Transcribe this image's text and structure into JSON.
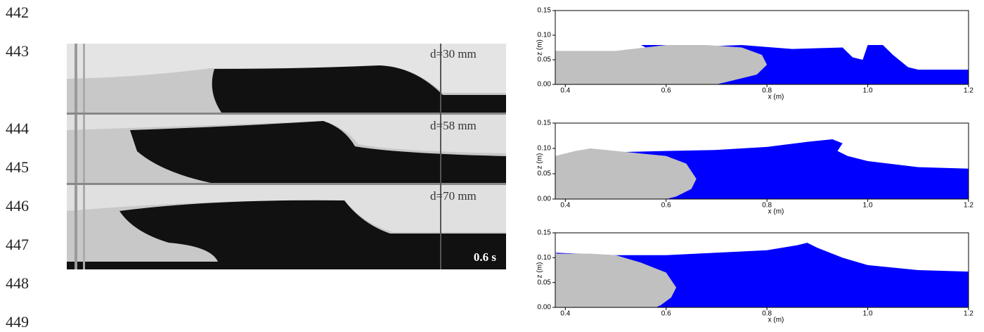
{
  "line_numbers": [
    442,
    443,
    444,
    445,
    446,
    447,
    448,
    449
  ],
  "photo": {
    "labels": [
      "d=30 mm",
      "d=58 mm",
      "d=70 mm"
    ],
    "time": "0.6 s"
  },
  "chart_data": [
    {
      "type": "area",
      "xlabel": "x (m)",
      "ylabel": "z (m)",
      "xlim": [
        0.38,
        1.2
      ],
      "ylim": [
        0,
        0.15
      ],
      "xticks": [
        0.4,
        0.6,
        0.8,
        {
          "value": 1.0,
          "label": "1.0"
        },
        1.2
      ],
      "yticks": [
        {
          "value": 0,
          "label": "0.00"
        },
        {
          "value": 0.05,
          "label": "0.05"
        },
        {
          "value": 0.1,
          "label": "0.10"
        },
        {
          "value": 0.15,
          "label": "0.15"
        }
      ],
      "regions": [
        {
          "color": "#0000ff",
          "x": [
            0.55,
            0.6,
            0.7,
            0.75,
            0.85,
            0.95,
            0.97,
            0.99,
            1.0,
            1.03,
            1.05,
            1.08,
            1.1,
            1.2,
            1.2,
            0.7
          ],
          "z": [
            0.08,
            0.08,
            0.078,
            0.08,
            0.072,
            0.075,
            0.055,
            0.05,
            0.08,
            0.08,
            0.06,
            0.035,
            0.03,
            0.03,
            0,
            0
          ]
        },
        {
          "color": "#c0c0c0",
          "x": [
            0.38,
            0.38,
            0.5,
            0.6,
            0.68,
            0.75,
            0.79,
            0.8,
            0.78,
            0.72,
            0.7
          ],
          "z": [
            0,
            0.068,
            0.068,
            0.08,
            0.08,
            0.075,
            0.06,
            0.04,
            0.02,
            0.005,
            0
          ]
        }
      ]
    },
    {
      "type": "area",
      "xlabel": "x (m)",
      "ylabel": "z (m)",
      "xlim": [
        0.38,
        1.2
      ],
      "ylim": [
        0,
        0.15
      ],
      "xticks": [
        0.4,
        0.6,
        0.8,
        {
          "value": 1.0,
          "label": "1.0"
        },
        1.2
      ],
      "yticks": [
        {
          "value": 0,
          "label": "0.00"
        },
        {
          "value": 0.05,
          "label": "0.05"
        },
        {
          "value": 0.1,
          "label": "0.10"
        },
        {
          "value": 0.15,
          "label": "0.15"
        }
      ],
      "regions": [
        {
          "color": "#0000ff",
          "x": [
            0.52,
            0.6,
            0.7,
            0.8,
            0.88,
            0.93,
            0.95,
            0.94,
            0.96,
            1.0,
            1.1,
            1.2,
            1.2,
            0.6
          ],
          "z": [
            0.093,
            0.095,
            0.097,
            0.103,
            0.113,
            0.118,
            0.11,
            0.095,
            0.085,
            0.075,
            0.063,
            0.06,
            0,
            0
          ]
        },
        {
          "color": "#c0c0c0",
          "x": [
            0.38,
            0.38,
            0.42,
            0.45,
            0.5,
            0.55,
            0.6,
            0.64,
            0.66,
            0.65,
            0.62,
            0.6
          ],
          "z": [
            0,
            0.085,
            0.095,
            0.1,
            0.095,
            0.09,
            0.085,
            0.07,
            0.04,
            0.02,
            0.005,
            0
          ]
        }
      ]
    },
    {
      "type": "area",
      "xlabel": "x (m)",
      "ylabel": "z (m)",
      "xlim": [
        0.38,
        1.2
      ],
      "ylim": [
        0,
        0.15
      ],
      "xticks": [
        0.4,
        0.6,
        0.8,
        {
          "value": 1.0,
          "label": "1.0"
        },
        1.2
      ],
      "yticks": [
        {
          "value": 0,
          "label": "0.00"
        },
        {
          "value": 0.05,
          "label": "0.05"
        },
        {
          "value": 0.1,
          "label": "0.10"
        },
        {
          "value": 0.15,
          "label": "0.15"
        }
      ],
      "regions": [
        {
          "color": "#0000ff",
          "x": [
            0.38,
            0.5,
            0.6,
            0.7,
            0.8,
            0.86,
            0.88,
            0.9,
            0.95,
            1.0,
            1.1,
            1.2,
            1.2,
            0.58
          ],
          "z": [
            0.11,
            0.105,
            0.105,
            0.11,
            0.115,
            0.125,
            0.13,
            0.12,
            0.1,
            0.085,
            0.075,
            0.072,
            0,
            0
          ]
        },
        {
          "color": "#c0c0c0",
          "x": [
            0.38,
            0.38,
            0.45,
            0.5,
            0.55,
            0.6,
            0.62,
            0.61,
            0.59,
            0.58
          ],
          "z": [
            0,
            0.108,
            0.108,
            0.105,
            0.09,
            0.07,
            0.04,
            0.02,
            0.005,
            0
          ]
        }
      ]
    }
  ]
}
